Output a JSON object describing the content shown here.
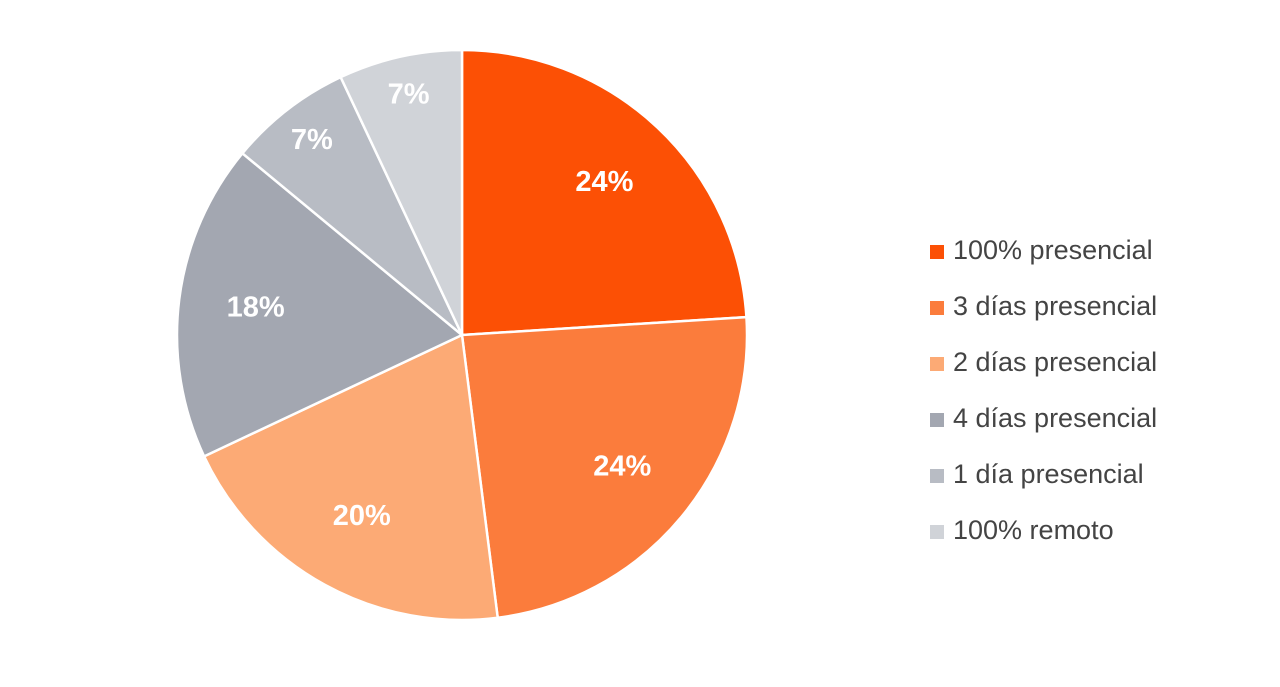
{
  "chart_data": {
    "type": "pie",
    "categories": [
      "100% presencial",
      "3 días presencial",
      "2 días presencial",
      "4 días presencial",
      "1 día presencial",
      "100% remoto"
    ],
    "values": [
      24,
      24,
      20,
      18,
      7,
      7
    ],
    "value_labels": [
      "24%",
      "24%",
      "20%",
      "18%",
      "7%",
      "7%"
    ],
    "colors": [
      "#fc5005",
      "#fb7c3c",
      "#fcaa75",
      "#a3a7b1",
      "#b8bcc4",
      "#d0d3d8"
    ],
    "legend": "right"
  }
}
